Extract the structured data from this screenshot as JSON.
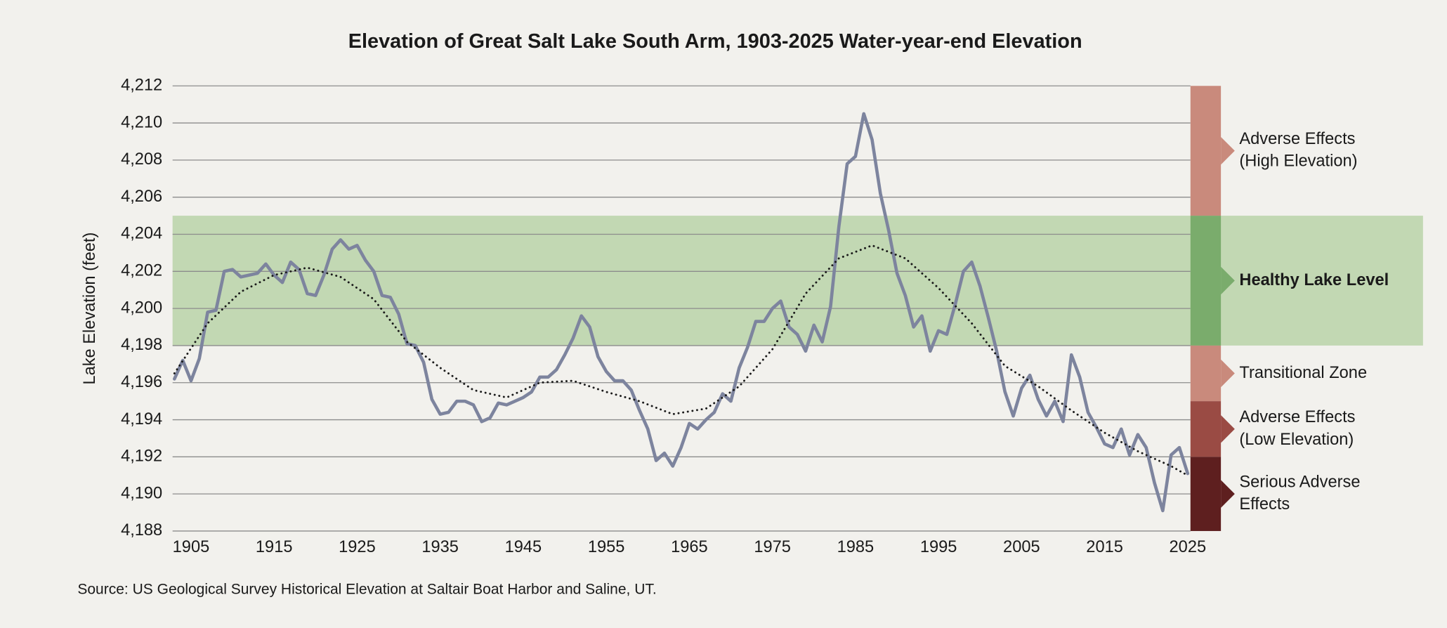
{
  "chart_data": {
    "type": "line",
    "title": "Elevation of Great Salt Lake South Arm, 1903-2025 Water-year-end Elevation",
    "y_label": "Lake Elevation (feet)",
    "source": "Source: US Geological Survey Historical Elevation at Saltair Boat Harbor and Saline, UT.",
    "xlim": [
      1903,
      2025
    ],
    "xticks": [
      1905,
      1915,
      1925,
      1935,
      1945,
      1955,
      1965,
      1975,
      1985,
      1995,
      2005,
      2015,
      2025
    ],
    "ylim": [
      4188,
      4212
    ],
    "yticks": [
      {
        "value": 4188,
        "label": "4,188"
      },
      {
        "value": 4190,
        "label": "4,190"
      },
      {
        "value": 4192,
        "label": "4,192"
      },
      {
        "value": 4194,
        "label": "4,194"
      },
      {
        "value": 4196,
        "label": "4,196"
      },
      {
        "value": 4198,
        "label": "4,198"
      },
      {
        "value": 4200,
        "label": "4,200"
      },
      {
        "value": 4202,
        "label": "4,202"
      },
      {
        "value": 4204,
        "label": "4,204"
      },
      {
        "value": 4206,
        "label": "4,206"
      },
      {
        "value": 4208,
        "label": "4,208"
      },
      {
        "value": 4210,
        "label": "4,210"
      },
      {
        "value": 4212,
        "label": "4,212"
      }
    ],
    "grid": true,
    "series": [
      {
        "color": "#7d849e",
        "style": "solid",
        "x": [
          1903,
          1904,
          1905,
          1906,
          1907,
          1908,
          1909,
          1910,
          1911,
          1912,
          1913,
          1914,
          1915,
          1916,
          1917,
          1918,
          1919,
          1920,
          1921,
          1922,
          1923,
          1924,
          1925,
          1926,
          1927,
          1928,
          1929,
          1930,
          1931,
          1932,
          1933,
          1934,
          1935,
          1936,
          1937,
          1938,
          1939,
          1940,
          1941,
          1942,
          1943,
          1944,
          1945,
          1946,
          1947,
          1948,
          1949,
          1950,
          1951,
          1952,
          1953,
          1954,
          1955,
          1956,
          1957,
          1958,
          1959,
          1960,
          1961,
          1962,
          1963,
          1964,
          1965,
          1966,
          1967,
          1968,
          1969,
          1970,
          1971,
          1972,
          1973,
          1974,
          1975,
          1976,
          1977,
          1978,
          1979,
          1980,
          1981,
          1982,
          1983,
          1984,
          1985,
          1986,
          1987,
          1988,
          1989,
          1990,
          1991,
          1992,
          1993,
          1994,
          1995,
          1996,
          1997,
          1998,
          1999,
          2000,
          2001,
          2002,
          2003,
          2004,
          2005,
          2006,
          2007,
          2008,
          2009,
          2010,
          2011,
          2012,
          2013,
          2014,
          2015,
          2016,
          2017,
          2018,
          2019,
          2020,
          2021,
          2022,
          2023,
          2024,
          2025
        ],
        "values": [
          4196.2,
          4197.2,
          4196.1,
          4197.3,
          4199.8,
          4199.9,
          4202.0,
          4202.1,
          4201.7,
          4201.8,
          4201.9,
          4202.4,
          4201.8,
          4201.4,
          4202.5,
          4202.1,
          4200.8,
          4200.7,
          4201.8,
          4203.2,
          4203.7,
          4203.2,
          4203.4,
          4202.6,
          4202.0,
          4200.7,
          4200.6,
          4199.7,
          4198.1,
          4198.0,
          4197.1,
          4195.1,
          4194.3,
          4194.4,
          4195.0,
          4195.0,
          4194.8,
          4193.9,
          4194.1,
          4194.9,
          4194.8,
          4195.0,
          4195.2,
          4195.5,
          4196.3,
          4196.3,
          4196.7,
          4197.5,
          4198.4,
          4199.6,
          4199.0,
          4197.4,
          4196.6,
          4196.1,
          4196.1,
          4195.6,
          4194.5,
          4193.5,
          4191.8,
          4192.2,
          4191.5,
          4192.5,
          4193.8,
          4193.5,
          4194.0,
          4194.4,
          4195.4,
          4195.0,
          4196.8,
          4197.9,
          4199.3,
          4199.3,
          4200.0,
          4200.4,
          4199.0,
          4198.6,
          4197.7,
          4199.1,
          4198.2,
          4200.1,
          4204.4,
          4207.8,
          4208.2,
          4210.5,
          4209.1,
          4206.2,
          4204.2,
          4201.9,
          4200.7,
          4199.0,
          4199.6,
          4197.7,
          4198.8,
          4198.6,
          4200.2,
          4202.0,
          4202.5,
          4201.2,
          4199.5,
          4197.7,
          4195.5,
          4194.2,
          4195.7,
          4196.4,
          4195.1,
          4194.2,
          4195.0,
          4193.9,
          4197.5,
          4196.3,
          4194.4,
          4193.6,
          4192.7,
          4192.5,
          4193.5,
          4192.1,
          4193.2,
          4192.5,
          4190.6,
          4189.1,
          4192.1,
          4192.5,
          4191.1
        ]
      },
      {
        "color": "#1a1a1a",
        "style": "dotted",
        "x": [
          1903,
          1907,
          1911,
          1915,
          1919,
          1923,
          1927,
          1931,
          1935,
          1939,
          1943,
          1947,
          1951,
          1955,
          1959,
          1963,
          1967,
          1971,
          1975,
          1979,
          1983,
          1987,
          1991,
          1995,
          1999,
          2003,
          2007,
          2011,
          2015,
          2019,
          2023,
          2025
        ],
        "values": [
          4196.5,
          4199.2,
          4200.9,
          4201.8,
          4202.2,
          4201.7,
          4200.5,
          4198.2,
          4196.8,
          4195.6,
          4195.2,
          4196.0,
          4196.1,
          4195.5,
          4195.0,
          4194.3,
          4194.6,
          4195.8,
          4197.8,
          4200.8,
          4202.7,
          4203.4,
          4202.7,
          4201.1,
          4199.2,
          4196.9,
          4195.8,
          4194.5,
          4193.3,
          4192.3,
          4191.5,
          4191.0
        ]
      }
    ],
    "zones": [
      {
        "label": [
          "Adverse Effects",
          "(High Elevation)"
        ],
        "range": [
          4205,
          4212
        ],
        "color": "#c98a7c"
      },
      {
        "label": [
          "Healthy Lake Level"
        ],
        "range": [
          4198,
          4205
        ],
        "color": "#7aac6c",
        "band_color": "#c2d8b3",
        "bold": true
      },
      {
        "label": [
          "Transitional Zone"
        ],
        "range": [
          4195,
          4198
        ],
        "color": "#c98a7c"
      },
      {
        "label": [
          "Adverse Effects",
          "(Low Elevation)"
        ],
        "range": [
          4192,
          4195
        ],
        "color": "#9a4b44"
      },
      {
        "label": [
          "Serious Adverse",
          "Effects"
        ],
        "range": [
          4188,
          4192
        ],
        "color": "#5e1f1f"
      }
    ]
  }
}
